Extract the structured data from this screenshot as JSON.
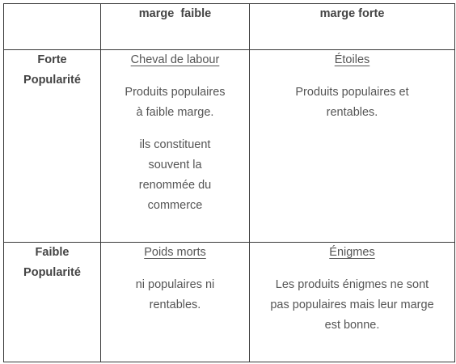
{
  "header": {
    "corner": "",
    "col_low_margin": "marge  faible",
    "col_high_margin": "marge forte"
  },
  "rows": {
    "high_popularity": {
      "label_line1": "Forte",
      "label_line2": "Popularité",
      "low_margin": {
        "title": "Cheval de labour",
        "text_1_line1": "Produits populaires",
        "text_1_line2": "à faible marge.",
        "text_2_line1": "ils constituent",
        "text_2_line2": "souvent la",
        "text_2_line3": "renommée du",
        "text_2_line4": "commerce"
      },
      "high_margin": {
        "title": "Étoiles",
        "text_line1": "Produits populaires et",
        "text_line2": "rentables."
      }
    },
    "low_popularity": {
      "label_line1": "Faible",
      "label_line2": "Popularité",
      "low_margin": {
        "title": "Poids morts",
        "text_line1": "ni populaires ni",
        "text_line2": "rentables."
      },
      "high_margin": {
        "title": "Énigmes",
        "text_line1": "Les produits énigmes ne sont",
        "text_line2": "pas populaires mais leur marge",
        "text_line3": "est bonne."
      }
    }
  }
}
